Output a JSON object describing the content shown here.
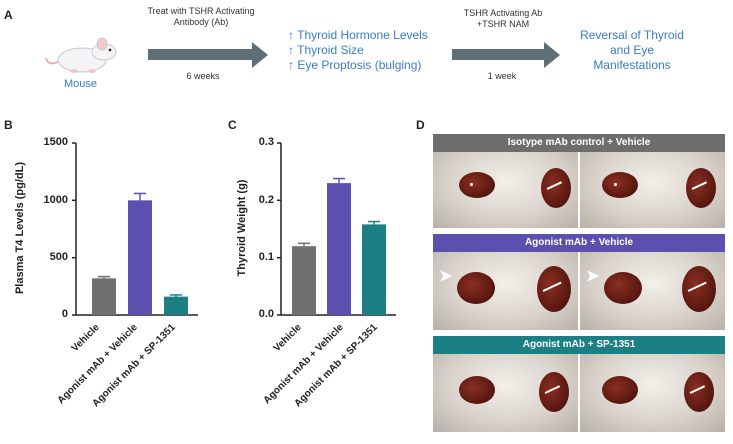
{
  "panel_a": {
    "letter": "A",
    "mouse_label": "Mouse",
    "step1_top": "Treat with TSHR Activating Antibody (Ab)",
    "step1_bottom": "6 weeks",
    "effects": [
      "↑ Thyroid Hormone Levels",
      "↑ Thyroid Size",
      "↑ Eye Proptosis (bulging)"
    ],
    "step2_top": "TSHR Activating Ab +TSHR NAM",
    "step2_bottom": "1 week",
    "result": "Reversal of Thyroid and Eye Manifestations"
  },
  "panel_b": {
    "letter": "B",
    "ylabel": "Plasma T4 Levels (pg/dL)",
    "ticks": [
      "1500",
      "1000",
      "500",
      "0"
    ]
  },
  "panel_c": {
    "letter": "C",
    "ylabel": "Thyroid Weight (g)",
    "ticks": [
      "0.3",
      "0.2",
      "0.1",
      "0.0"
    ]
  },
  "panel_d": {
    "letter": "D",
    "banners": [
      "Isotype mAb control + Vehicle",
      "Agonist mAb + Vehicle",
      "Agonist mAb + SP-1351"
    ]
  },
  "colors": {
    "vehicle": "#707070",
    "agonist": "#5b4fb0",
    "sp1351": "#1b7f84",
    "banner_gray": "#6d6d6d",
    "banner_purple": "#5b4fb0",
    "banner_teal": "#1b7f84",
    "arrow": "#5f6f78",
    "blue_text": "#3b7bc4"
  },
  "chart_data": [
    {
      "type": "bar",
      "title": "",
      "xlabel": "",
      "ylabel": "Plasma T4 Levels (pg/dL)",
      "categories": [
        "Vehicle",
        "Agonist mAb + Vehicle",
        "Agonist mAb + SP-1351"
      ],
      "values": [
        320,
        1000,
        160
      ],
      "errors": [
        15,
        60,
        15
      ],
      "ylim": [
        0,
        1500
      ]
    },
    {
      "type": "bar",
      "title": "",
      "xlabel": "",
      "ylabel": "Thyroid Weight (g)",
      "categories": [
        "Vehicle",
        "Agonist mAb + Vehicle",
        "Agonist mAb + SP-1351"
      ],
      "values": [
        0.12,
        0.23,
        0.158
      ],
      "errors": [
        0.005,
        0.008,
        0.005
      ],
      "ylim": [
        0,
        0.3
      ]
    }
  ]
}
